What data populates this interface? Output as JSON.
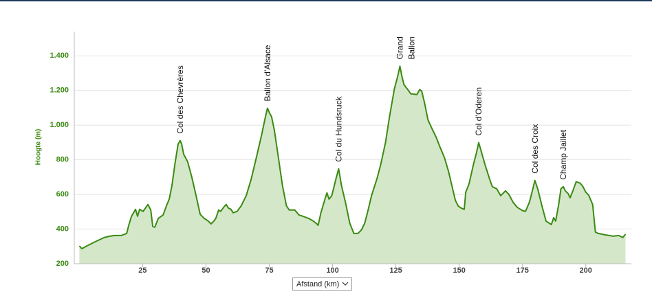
{
  "chart_data": {
    "type": "area",
    "y_label": "Hoogte (m)",
    "x_label": "Afstand (km)",
    "xlim": [
      -2,
      218
    ],
    "ylim": [
      200,
      1540
    ],
    "xticks": [
      25,
      50,
      75,
      100,
      125,
      150,
      175,
      200
    ],
    "yticks": [
      200,
      400,
      600,
      800,
      {
        "value": 1000,
        "label": "1.000"
      },
      {
        "value": 1200,
        "label": "1.200"
      },
      {
        "value": 1400,
        "label": "1.400"
      }
    ],
    "grid": true,
    "x": [
      0,
      1,
      3,
      5.7,
      9.8,
      12,
      14,
      16.5,
      18.7,
      19.5,
      20.6,
      22.2,
      23,
      23.8,
      25.2,
      26.3,
      27.1,
      28.2,
      29,
      29.8,
      31.2,
      33.1,
      34.4,
      35.5,
      36.6,
      37.7,
      39,
      39.8,
      40.4,
      41.2,
      42.8,
      44.4,
      46.1,
      47.7,
      49.3,
      50.9,
      52,
      53.1,
      53.9,
      55,
      55.8,
      57.2,
      58,
      58.8,
      59.9,
      60.7,
      62.3,
      63.9,
      65.9,
      67.8,
      69.9,
      72.1,
      73.4,
      74.3,
      75.1,
      75.9,
      77,
      78.6,
      80.2,
      81.8,
      82.9,
      85.1,
      86.7,
      88.3,
      90.5,
      92.4,
      93.8,
      94.3,
      95.4,
      97,
      97.8,
      98.6,
      99.7,
      101.4,
      102.4,
      103.5,
      105.1,
      106.8,
      108.4,
      110,
      111.4,
      112.7,
      114.1,
      115.4,
      117.6,
      119,
      120.9,
      122.5,
      124.4,
      125.7,
      126.6,
      127.4,
      128.2,
      129.5,
      130.9,
      133.3,
      134.4,
      135.2,
      136.3,
      137.7,
      139.3,
      140.9,
      142.5,
      144.2,
      145.8,
      147.4,
      148.5,
      149.6,
      150.7,
      152,
      152.6,
      153.9,
      155.6,
      156.9,
      157.7,
      158.5,
      160.2,
      162.1,
      163.1,
      164.8,
      166.4,
      168.3,
      169.6,
      171.3,
      172.9,
      175.1,
      176.2,
      177.8,
      179.1,
      179.9,
      181,
      182.7,
      184.3,
      186.4,
      187.3,
      188.1,
      189.2,
      190.2,
      191.1,
      191.9,
      193,
      193.8,
      194.9,
      196.2,
      197.8,
      198.9,
      200,
      201.1,
      202.7,
      203.8,
      204.9,
      207.6,
      210.8,
      213,
      214.6,
      215.7
    ],
    "series": [
      {
        "color": "#3a8a12",
        "fill": "#d4e7c9",
        "values": [
          303,
          287,
          303,
          323,
          351,
          359,
          363,
          363,
          375,
          422,
          474,
          514,
          474,
          514,
          502,
          526,
          542,
          510,
          415,
          411,
          462,
          482,
          534,
          574,
          653,
          772,
          891,
          911,
          891,
          832,
          788,
          701,
          593,
          486,
          462,
          446,
          430,
          446,
          462,
          510,
          502,
          530,
          542,
          522,
          514,
          494,
          502,
          534,
          593,
          685,
          812,
          951,
          1042,
          1098,
          1070,
          1050,
          971,
          812,
          653,
          534,
          510,
          510,
          482,
          474,
          462,
          446,
          430,
          422,
          494,
          573,
          609,
          573,
          593,
          693,
          748,
          653,
          554,
          434,
          375,
          375,
          395,
          434,
          514,
          593,
          693,
          772,
          899,
          1050,
          1209,
          1281,
          1340,
          1281,
          1233,
          1209,
          1181,
          1177,
          1205,
          1197,
          1130,
          1030,
          979,
          931,
          871,
          812,
          732,
          633,
          566,
          534,
          522,
          514,
          613,
          661,
          772,
          844,
          899,
          860,
          772,
          685,
          645,
          633,
          593,
          621,
          601,
          554,
          526,
          506,
          502,
          558,
          633,
          681,
          633,
          534,
          446,
          426,
          466,
          446,
          534,
          633,
          645,
          621,
          605,
          581,
          621,
          673,
          665,
          645,
          613,
          597,
          542,
          383,
          375,
          367,
          359,
          363,
          351,
          371
        ]
      }
    ],
    "annotations": [
      {
        "x": 39.8,
        "lines": [
          "Col des Chevrères"
        ]
      },
      {
        "x": 74.3,
        "lines": [
          "Ballon d’Alsace"
        ]
      },
      {
        "x": 102.4,
        "lines": [
          "Col du Hundsruck"
        ]
      },
      {
        "x": 126.6,
        "lines": [
          "Grand",
          "Ballon"
        ]
      },
      {
        "x": 157.7,
        "lines": [
          "Col d’Oderen"
        ]
      },
      {
        "x": 179.9,
        "lines": [
          "Col des Croix"
        ]
      },
      {
        "x": 191.1,
        "lines": [
          "Champ Jaillet"
        ]
      }
    ]
  }
}
